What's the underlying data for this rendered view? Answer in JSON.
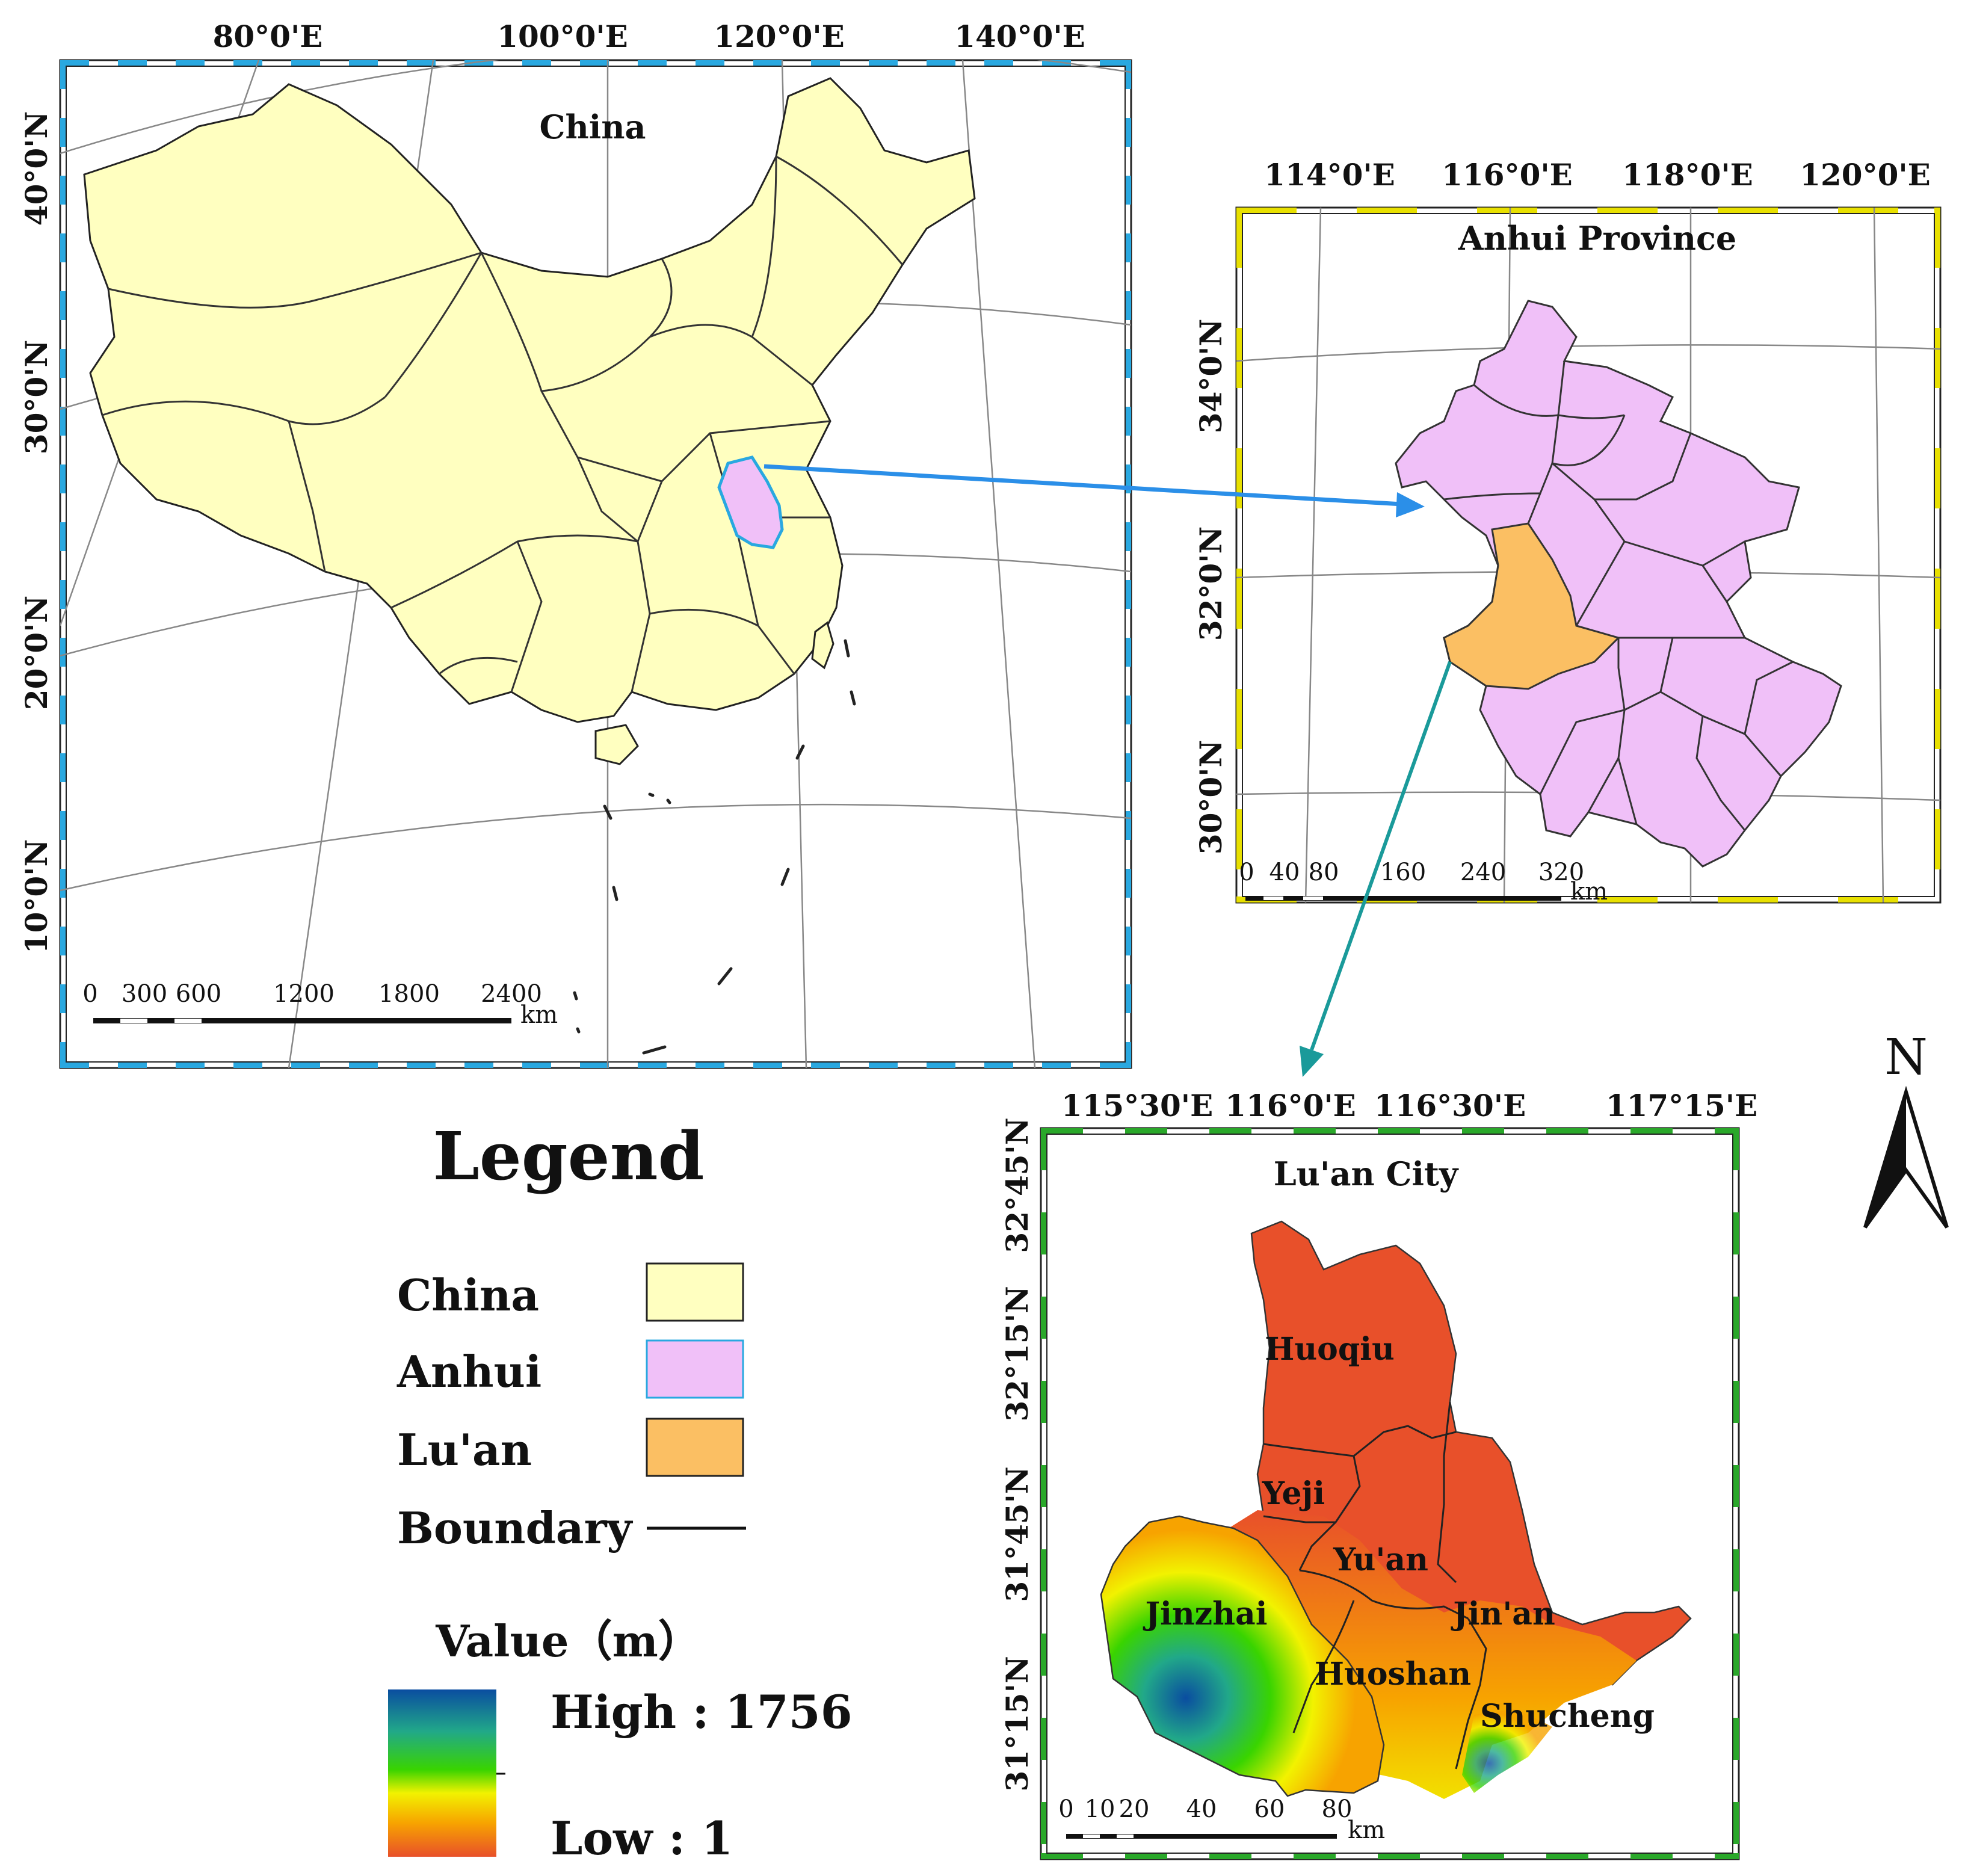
{
  "china_map": {
    "title": "China",
    "lon_labels": [
      "80°0'E",
      "100°0'E",
      "120°0'E",
      "140°0'E"
    ],
    "lat_labels": [
      "40°0'N",
      "30°0'N",
      "20°0'N",
      "10°0'N"
    ],
    "scale_labels": [
      "0",
      "300",
      "600",
      "1200",
      "1800",
      "2400"
    ],
    "scale_unit": "km",
    "colors": {
      "china_fill": "#FFFFC0",
      "anhui_fill": "#F0C0F8",
      "anhui_outline": "#29A8E0",
      "frame_ticks": "#29A8E0"
    }
  },
  "anhui_map": {
    "title": "Anhui Province",
    "lon_labels": [
      "114°0'E",
      "116°0'E",
      "118°0'E",
      "120°0'E"
    ],
    "lat_labels": [
      "34°0'N",
      "32°0'N",
      "30°0'N"
    ],
    "scale_labels": [
      "0",
      "40",
      "80",
      "160",
      "240",
      "320"
    ],
    "scale_unit": "km",
    "colors": {
      "anhui_fill": "#F0C0F8",
      "luan_fill": "#FBBF63",
      "frame_ticks": "#E8E000"
    }
  },
  "luan_map": {
    "title": "Lu'an City",
    "lon_labels": [
      "115°30'E",
      "116°0'E",
      "116°30'E",
      "117°15'E"
    ],
    "lat_labels": [
      "32°45'N",
      "32°15'N",
      "31°45'N",
      "31°15'N"
    ],
    "scale_labels": [
      "0",
      "10",
      "20",
      "40",
      "60",
      "80"
    ],
    "scale_unit": "km",
    "counties": [
      "Huoqiu",
      "Yeji",
      "Yu'an",
      "Jinzhai",
      "Jin'an",
      "Huoshan",
      "Shucheng"
    ],
    "colors": {
      "frame_ticks": "#2AA82A"
    }
  },
  "north_arrow": {
    "label": "N"
  },
  "legend": {
    "title": "Legend",
    "items": [
      {
        "label": "China",
        "color": "#FFFFC0"
      },
      {
        "label": "Anhui",
        "color": "#F0C0F8"
      },
      {
        "label": "Lu'an",
        "color": "#FBBF63"
      },
      {
        "label": "Boundary"
      }
    ],
    "value_title": "Value（m）",
    "high_label": "High : 1756",
    "low_label": "Low : 1",
    "ramp_colors": [
      "#0A4DA0",
      "#21A889",
      "#39D400",
      "#F2F200",
      "#F7A300",
      "#E8502A"
    ]
  },
  "arrows": {
    "china_to_anhui_color": "#2B8FE8",
    "anhui_to_luan_color": "#1A9A9A"
  }
}
